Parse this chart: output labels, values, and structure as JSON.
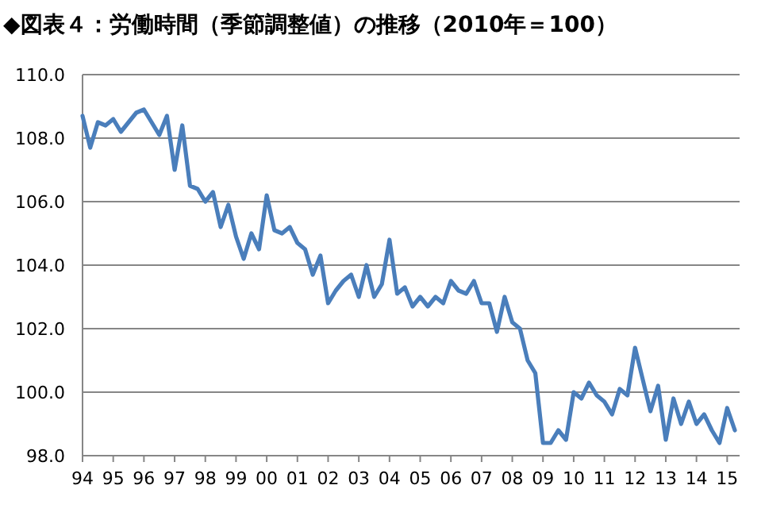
{
  "chart_data": {
    "type": "line",
    "title": "◆図表４：労働時間（季節調整値）の推移（2010年＝100）",
    "categories": [
      "94",
      null,
      null,
      null,
      "95",
      null,
      null,
      null,
      "96",
      null,
      null,
      null,
      "97",
      null,
      null,
      null,
      "98",
      null,
      null,
      null,
      "99",
      null,
      null,
      null,
      "00",
      null,
      null,
      null,
      "01",
      null,
      null,
      null,
      "02",
      null,
      null,
      null,
      "03",
      null,
      null,
      null,
      "04",
      null,
      null,
      null,
      "05",
      null,
      null,
      null,
      "06",
      null,
      null,
      null,
      "07",
      null,
      null,
      null,
      "08",
      null,
      null,
      null,
      "09",
      null,
      null,
      null,
      "10",
      null,
      null,
      null,
      "11",
      null,
      null,
      null,
      "12",
      null,
      null,
      null,
      "13",
      null,
      null,
      null,
      "14",
      null,
      null,
      null,
      "15",
      null
    ],
    "series": [
      {
        "color": "#4a7ebb",
        "values": [
          108.7,
          107.7,
          108.5,
          108.4,
          108.6,
          108.2,
          108.5,
          108.8,
          108.9,
          108.5,
          108.1,
          108.7,
          107.0,
          108.4,
          106.5,
          106.4,
          106.0,
          106.3,
          105.2,
          105.9,
          104.9,
          104.2,
          105.0,
          104.5,
          106.2,
          105.1,
          105.0,
          105.2,
          104.7,
          104.5,
          103.7,
          104.3,
          102.8,
          103.2,
          103.5,
          103.7,
          103.0,
          104.0,
          103.0,
          103.4,
          104.8,
          103.1,
          103.3,
          102.7,
          103.0,
          102.7,
          103.0,
          102.8,
          103.5,
          103.2,
          103.1,
          103.5,
          102.8,
          102.8,
          101.9,
          103.0,
          102.2,
          102.0,
          101.0,
          100.6,
          98.4,
          98.4,
          98.8,
          98.5,
          100.0,
          99.8,
          100.3,
          99.9,
          99.7,
          99.3,
          100.1,
          99.9,
          101.4,
          100.4,
          99.4,
          100.2,
          98.5,
          99.8,
          99.0,
          99.7,
          99.0,
          99.3,
          98.8,
          98.4,
          99.5,
          98.8
        ]
      }
    ],
    "ylim": [
      98,
      110
    ],
    "yticks": [
      {
        "value": 98,
        "label": "98.0"
      },
      {
        "value": 100,
        "label": "100.0"
      },
      {
        "value": 102,
        "label": "102.0"
      },
      {
        "value": 104,
        "label": "104.0"
      },
      {
        "value": 106,
        "label": "106.0"
      },
      {
        "value": 108,
        "label": "108.0"
      },
      {
        "value": 110,
        "label": "110.0"
      }
    ],
    "grid": "y"
  }
}
